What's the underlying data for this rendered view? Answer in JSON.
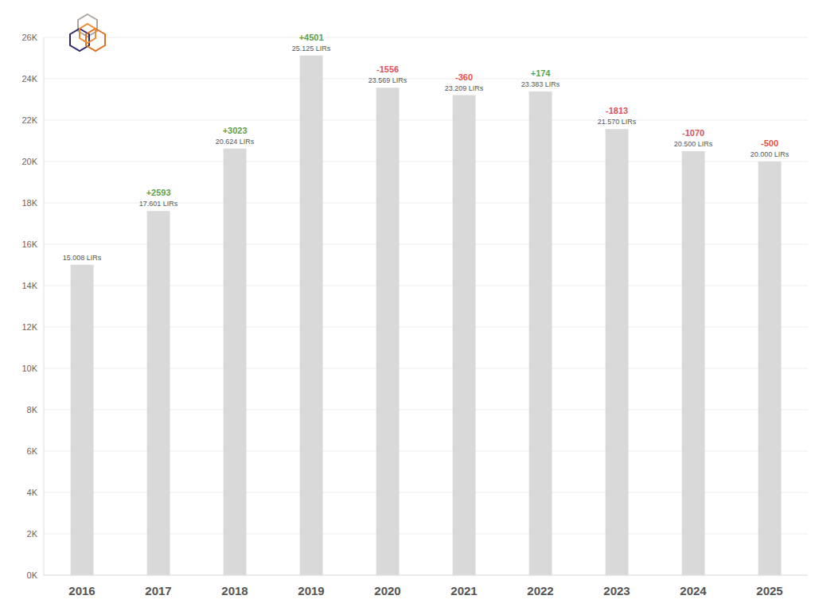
{
  "chart_data": {
    "type": "bar",
    "categories": [
      "2016",
      "2017",
      "2018",
      "2019",
      "2020",
      "2021",
      "2022",
      "2023",
      "2024",
      "2025"
    ],
    "values": [
      15008,
      17601,
      20624,
      25125,
      23569,
      23209,
      23383,
      21570,
      20500,
      20000
    ],
    "value_labels": [
      "15.008 LIRs",
      "17.601 LIRs",
      "20.624 LIRs",
      "25.125 LIRs",
      "23.569 LIRs",
      "23.209 LIRs",
      "23.383 LIRs",
      "21.570 LIRs",
      "20.500 LIRs",
      "20.000 LIRs"
    ],
    "changes": [
      null,
      2593,
      3023,
      4501,
      -1556,
      -360,
      174,
      -1813,
      -1070,
      -500
    ],
    "change_labels": [
      null,
      "+2593",
      "+3023",
      "+4501",
      "-1556",
      "-360",
      "+174",
      "-1813",
      "-1070",
      "-500"
    ],
    "color": "#d9d9d9",
    "ylim": [
      0,
      26000
    ],
    "yticks": [
      {
        "value": 0,
        "label": "0K"
      },
      {
        "value": 2000,
        "label": "2K"
      },
      {
        "value": 4000,
        "label": "4K"
      },
      {
        "value": 6000,
        "label": "6K"
      },
      {
        "value": 8000,
        "label": "8K"
      },
      {
        "value": 10000,
        "label": "10K"
      },
      {
        "value": 12000,
        "label": "12K"
      },
      {
        "value": 14000,
        "label": "14K"
      },
      {
        "value": 16000,
        "label": "16K"
      },
      {
        "value": 18000,
        "label": "18K"
      },
      {
        "value": 20000,
        "label": "20K"
      },
      {
        "value": 22000,
        "label": "22K"
      },
      {
        "value": 24000,
        "label": "24K"
      },
      {
        "value": 26000,
        "label": "26K"
      }
    ],
    "grid": true,
    "data_labels": true
  }
}
